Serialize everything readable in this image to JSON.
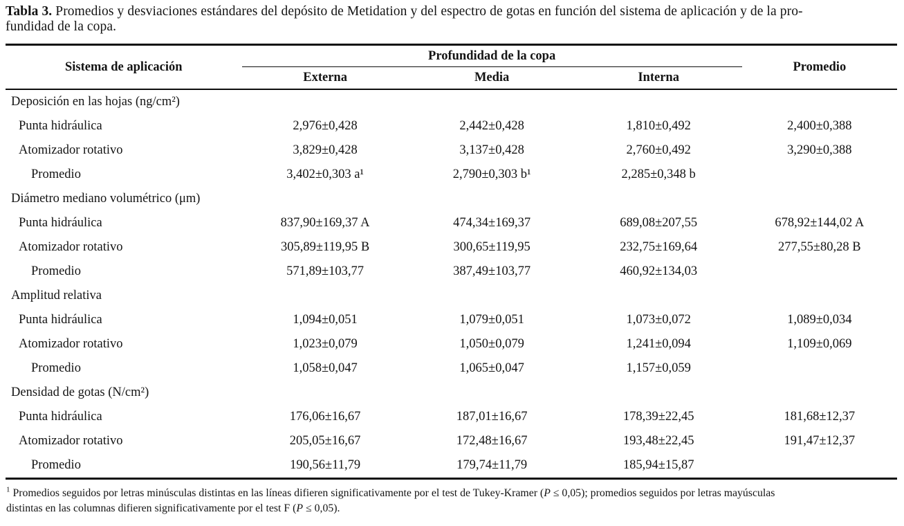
{
  "title": {
    "bold": "Tabla 3.",
    "line1": "Promedios y desviaciones estándares del depósito de Metidation y del espectro de gotas en función del sistema de aplicación y de la pro-",
    "line2": "fundidad de la copa."
  },
  "table": {
    "headers": {
      "col1": "Sistema de aplicación",
      "span": "Profundidad de la copa",
      "sub": [
        "Externa",
        "Media",
        "Interna"
      ],
      "promedio": "Promedio"
    },
    "sections": [
      {
        "header": "Deposición en las hojas (ng/cm²)",
        "rows": [
          {
            "label": "Punta hidráulica",
            "externa": "2,976±0,428",
            "media": "2,442±0,428",
            "interna": "1,810±0,492",
            "promedio": "2,400±0,388"
          },
          {
            "label": "Atomizador rotativo",
            "externa": "3,829±0,428",
            "media": "3,137±0,428",
            "interna": "2,760±0,492",
            "promedio": "3,290±0,388"
          },
          {
            "label": "Promedio",
            "externa": "3,402±0,303 a¹",
            "media": "2,790±0,303 b¹",
            "interna": "2,285±0,348 b",
            "promedio": ""
          }
        ]
      },
      {
        "header": "Diámetro mediano volumétrico (μm)",
        "rows": [
          {
            "label": "Punta hidráulica",
            "externa": "837,90±169,37 A",
            "media": "474,34±169,37",
            "interna": "689,08±207,55",
            "promedio": "678,92±144,02 A"
          },
          {
            "label": "Atomizador rotativo",
            "externa": "305,89±119,95 B",
            "media": "300,65±119,95",
            "interna": "232,75±169,64",
            "promedio": "277,55±80,28 B"
          },
          {
            "label": "Promedio",
            "externa": "571,89±103,77",
            "media": "387,49±103,77",
            "interna": "460,92±134,03",
            "promedio": ""
          }
        ]
      },
      {
        "header": "Amplitud relativa",
        "rows": [
          {
            "label": "Punta hidráulica",
            "externa": "1,094±0,051",
            "media": "1,079±0,051",
            "interna": "1,073±0,072",
            "promedio": "1,089±0,034"
          },
          {
            "label": "Atomizador rotativo",
            "externa": "1,023±0,079",
            "media": "1,050±0,079",
            "interna": "1,241±0,094",
            "promedio": "1,109±0,069"
          },
          {
            "label": "Promedio",
            "externa": "1,058±0,047",
            "media": "1,065±0,047",
            "interna": "1,157±0,059",
            "promedio": ""
          }
        ]
      },
      {
        "header": "Densidad de gotas (N/cm²)",
        "rows": [
          {
            "label": "Punta hidráulica",
            "externa": "176,06±16,67",
            "media": "187,01±16,67",
            "interna": "178,39±22,45",
            "promedio": "181,68±12,37"
          },
          {
            "label": "Atomizador rotativo",
            "externa": "205,05±16,67",
            "media": "172,48±16,67",
            "interna": "193,48±22,45",
            "promedio": "191,47±12,37"
          },
          {
            "label": "Promedio",
            "externa": "190,56±11,79",
            "media": "179,74±11,79",
            "interna": "185,94±15,87",
            "promedio": ""
          }
        ]
      }
    ]
  },
  "footnote": {
    "marker": "1",
    "l1a": "Promedios seguidos por letras minúsculas distintas en las líneas difieren significativamente por el test de Tukey-Kramer (",
    "l1p": "P",
    "l1b": " ≤ 0,05); promedios seguidos por letras mayúsculas",
    "l2a": "distintas en las columnas difieren significativamente por el test F (",
    "l2p": "P",
    "l2b": " ≤ 0,05)."
  },
  "colors": {
    "text": "#141414",
    "rule": "#0d0d0d",
    "background": "#ffffff"
  }
}
